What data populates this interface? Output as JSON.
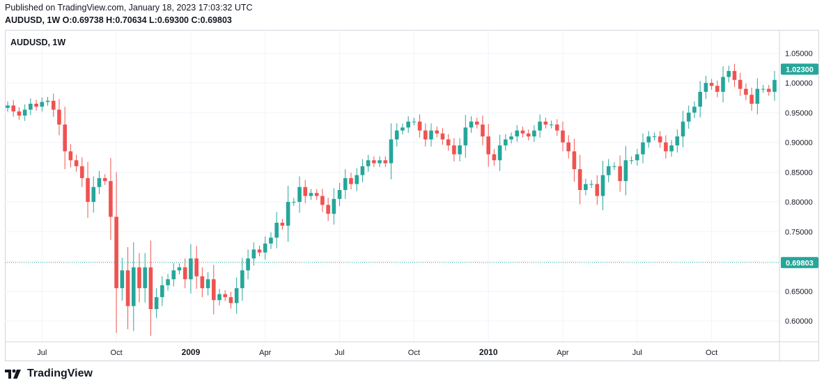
{
  "header": {
    "published_text": "Published on TradingView.com, January 18, 2023 17:03:32 UTC",
    "ohlc_text": "AUDUSD, 1W  O:0.69738  H:0.70634  L:0.69300  C:0.69803"
  },
  "footer": {
    "brand": "TradingView"
  },
  "colors": {
    "up": "#26a69a",
    "down": "#ef5350",
    "grid": "#f0f3fa",
    "border": "#d1d4dc",
    "text": "#131722",
    "price_label_bg": "#26a69a"
  },
  "chart_data": {
    "type": "candlestick",
    "title": "AUDUSD, 1W",
    "symbol": "AUDUSD",
    "interval": "1W",
    "ylim": [
      0.565,
      1.089
    ],
    "y_ticks": [
      "1.05000",
      "1.00000",
      "0.95000",
      "0.90000",
      "0.85000",
      "0.80000",
      "0.75000",
      "0.70000",
      "0.65000",
      "0.60000"
    ],
    "x_ticks": [
      {
        "label": "Jul",
        "index": 6,
        "bold": false
      },
      {
        "label": "Oct",
        "index": 19,
        "bold": false
      },
      {
        "label": "2009",
        "index": 32,
        "bold": true
      },
      {
        "label": "Apr",
        "index": 45,
        "bold": false
      },
      {
        "label": "Jul",
        "index": 58,
        "bold": false
      },
      {
        "label": "Oct",
        "index": 71,
        "bold": false
      },
      {
        "label": "2010",
        "index": 84,
        "bold": true
      },
      {
        "label": "Apr",
        "index": 97,
        "bold": false
      },
      {
        "label": "Jul",
        "index": 110,
        "bold": false
      },
      {
        "label": "Oct",
        "index": 123,
        "bold": false
      }
    ],
    "price_labels": [
      {
        "text": "1.02300",
        "value": 1.023
      },
      {
        "text": "0.69803",
        "value": 0.69803
      }
    ],
    "current_price_line": 0.69803,
    "closes": [
      0.962,
      0.952,
      0.945,
      0.955,
      0.965,
      0.96,
      0.968,
      0.97,
      0.955,
      0.93,
      0.885,
      0.87,
      0.86,
      0.84,
      0.8,
      0.825,
      0.84,
      0.835,
      0.775,
      0.655,
      0.685,
      0.625,
      0.69,
      0.655,
      0.69,
      0.62,
      0.64,
      0.66,
      0.67,
      0.685,
      0.69,
      0.67,
      0.705,
      0.675,
      0.655,
      0.67,
      0.635,
      0.645,
      0.64,
      0.63,
      0.655,
      0.685,
      0.705,
      0.72,
      0.715,
      0.73,
      0.74,
      0.765,
      0.76,
      0.8,
      0.8,
      0.825,
      0.81,
      0.815,
      0.81,
      0.795,
      0.78,
      0.805,
      0.82,
      0.84,
      0.83,
      0.845,
      0.86,
      0.87,
      0.865,
      0.87,
      0.865,
      0.905,
      0.92,
      0.925,
      0.935,
      0.935,
      0.92,
      0.905,
      0.92,
      0.915,
      0.905,
      0.895,
      0.88,
      0.895,
      0.925,
      0.935,
      0.93,
      0.91,
      0.88,
      0.87,
      0.895,
      0.905,
      0.91,
      0.92,
      0.915,
      0.91,
      0.92,
      0.935,
      0.93,
      0.93,
      0.92,
      0.9,
      0.885,
      0.855,
      0.82,
      0.83,
      0.83,
      0.81,
      0.845,
      0.86,
      0.86,
      0.835,
      0.87,
      0.87,
      0.88,
      0.9,
      0.91,
      0.91,
      0.9,
      0.885,
      0.895,
      0.91,
      0.935,
      0.95,
      0.96,
      0.985,
      1.0,
      0.995,
      0.985,
      1.01,
      1.02,
      1.005,
      0.99,
      0.98,
      0.965,
      0.99,
      0.99,
      0.985,
      1.005
    ]
  }
}
